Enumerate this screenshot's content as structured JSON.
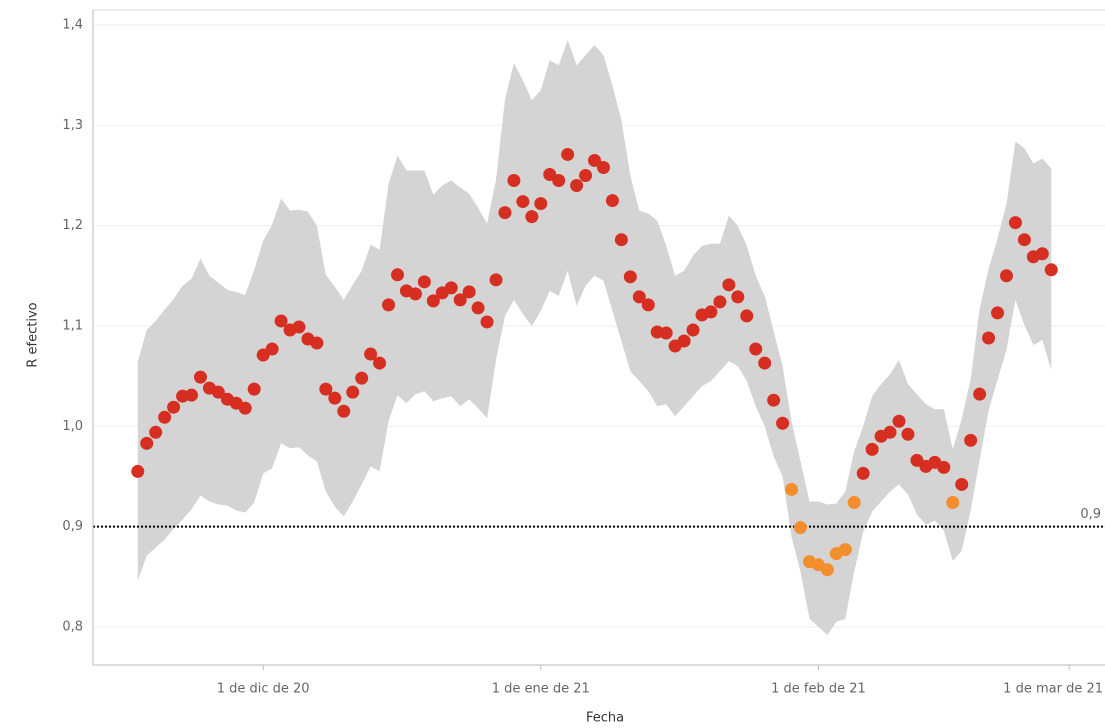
{
  "chart_data": {
    "type": "scatter",
    "y_label": "R efectivo",
    "x_label": "Fecha",
    "x": [
      "2020-11-17",
      "2020-11-18",
      "2020-11-19",
      "2020-11-20",
      "2020-11-21",
      "2020-11-22",
      "2020-11-23",
      "2020-11-24",
      "2020-11-25",
      "2020-11-26",
      "2020-11-27",
      "2020-11-28",
      "2020-11-29",
      "2020-11-30",
      "2020-12-01",
      "2020-12-02",
      "2020-12-03",
      "2020-12-04",
      "2020-12-05",
      "2020-12-06",
      "2020-12-07",
      "2020-12-08",
      "2020-12-09",
      "2020-12-10",
      "2020-12-11",
      "2020-12-12",
      "2020-12-13",
      "2020-12-14",
      "2020-12-15",
      "2020-12-16",
      "2020-12-17",
      "2020-12-18",
      "2020-12-19",
      "2020-12-20",
      "2020-12-21",
      "2020-12-22",
      "2020-12-23",
      "2020-12-24",
      "2020-12-25",
      "2020-12-26",
      "2020-12-27",
      "2020-12-28",
      "2020-12-29",
      "2020-12-30",
      "2020-12-31",
      "2021-01-01",
      "2021-01-02",
      "2021-01-03",
      "2021-01-04",
      "2021-01-05",
      "2021-01-06",
      "2021-01-07",
      "2021-01-08",
      "2021-01-09",
      "2021-01-10",
      "2021-01-11",
      "2021-01-12",
      "2021-01-13",
      "2021-01-14",
      "2021-01-15",
      "2021-01-16",
      "2021-01-17",
      "2021-01-18",
      "2021-01-19",
      "2021-01-20",
      "2021-01-21",
      "2021-01-22",
      "2021-01-23",
      "2021-01-24",
      "2021-01-25",
      "2021-01-26",
      "2021-01-27",
      "2021-01-28",
      "2021-01-29",
      "2021-01-30",
      "2021-01-31",
      "2021-02-01",
      "2021-02-02",
      "2021-02-03",
      "2021-02-04",
      "2021-02-05",
      "2021-02-06",
      "2021-02-07",
      "2021-02-08",
      "2021-02-09",
      "2021-02-10",
      "2021-02-11",
      "2021-02-12",
      "2021-02-13",
      "2021-02-14",
      "2021-02-15",
      "2021-02-16",
      "2021-02-17",
      "2021-02-18",
      "2021-02-19",
      "2021-02-20",
      "2021-02-21",
      "2021-02-22",
      "2021-02-23",
      "2021-02-24",
      "2021-02-25",
      "2021-02-26",
      "2021-02-27"
    ],
    "values": [
      0.955,
      0.983,
      0.994,
      1.009,
      1.019,
      1.03,
      1.031,
      1.049,
      1.038,
      1.034,
      1.027,
      1.023,
      1.018,
      1.037,
      1.071,
      1.077,
      1.105,
      1.096,
      1.099,
      1.087,
      1.083,
      1.037,
      1.028,
      1.015,
      1.034,
      1.048,
      1.072,
      1.063,
      1.121,
      1.151,
      1.135,
      1.132,
      1.144,
      1.125,
      1.133,
      1.138,
      1.126,
      1.134,
      1.118,
      1.104,
      1.146,
      1.213,
      1.245,
      1.224,
      1.209,
      1.222,
      1.251,
      1.245,
      1.271,
      1.24,
      1.25,
      1.265,
      1.258,
      1.225,
      1.186,
      1.149,
      1.129,
      1.121,
      1.094,
      1.093,
      1.08,
      1.085,
      1.096,
      1.111,
      1.114,
      1.124,
      1.141,
      1.129,
      1.11,
      1.077,
      1.063,
      1.026,
      1.003,
      0.937,
      0.899,
      0.865,
      0.862,
      0.857,
      0.873,
      0.877,
      0.924,
      0.953,
      0.977,
      0.99,
      0.994,
      1.005,
      0.992,
      0.966,
      0.96,
      0.964,
      0.959,
      0.924,
      0.942,
      0.986,
      1.032,
      1.088,
      1.113,
      1.15,
      1.203,
      1.186,
      1.169,
      1.172,
      1.156
    ],
    "colors": [
      "#d62f21",
      "#d62f21",
      "#d62f21",
      "#d62f21",
      "#d62f21",
      "#d62f21",
      "#d62f21",
      "#d62f21",
      "#d62f21",
      "#d62f21",
      "#d62f21",
      "#d62f21",
      "#d62f21",
      "#d62f21",
      "#d62f21",
      "#d62f21",
      "#d62f21",
      "#d62f21",
      "#d62f21",
      "#d62f21",
      "#d62f21",
      "#d62f21",
      "#d62f21",
      "#d62f21",
      "#d62f21",
      "#d62f21",
      "#d62f21",
      "#d62f21",
      "#d62f21",
      "#d62f21",
      "#d62f21",
      "#d62f21",
      "#d62f21",
      "#d62f21",
      "#d62f21",
      "#d62f21",
      "#d62f21",
      "#d62f21",
      "#d62f21",
      "#d62f21",
      "#d62f21",
      "#d62f21",
      "#d62f21",
      "#d62f21",
      "#d62f21",
      "#d62f21",
      "#d62f21",
      "#d62f21",
      "#d62f21",
      "#d62f21",
      "#d62f21",
      "#d62f21",
      "#d62f21",
      "#d62f21",
      "#d62f21",
      "#d62f21",
      "#d62f21",
      "#d62f21",
      "#d62f21",
      "#d62f21",
      "#d62f21",
      "#d62f21",
      "#d62f21",
      "#d62f21",
      "#d62f21",
      "#d62f21",
      "#d62f21",
      "#d62f21",
      "#d62f21",
      "#d62f21",
      "#d62f21",
      "#d62f21",
      "#d62f21",
      "#f28e2b",
      "#f28e2b",
      "#f28e2b",
      "#f28e2b",
      "#f28e2b",
      "#f28e2b",
      "#f28e2b",
      "#f28e2b",
      "#d62f21",
      "#d62f21",
      "#d62f21",
      "#d62f21",
      "#d62f21",
      "#d62f21",
      "#d62f21",
      "#d62f21",
      "#d62f21",
      "#d62f21",
      "#f28e2b",
      "#d62f21",
      "#d62f21",
      "#d62f21",
      "#d62f21",
      "#d62f21",
      "#d62f21",
      "#d62f21",
      "#d62f21",
      "#d62f21",
      "#d62f21",
      "#d62f21"
    ],
    "band": {
      "color": "#d4d4d4",
      "upper": [
        1.064,
        1.096,
        1.105,
        1.116,
        1.127,
        1.14,
        1.147,
        1.167,
        1.15,
        1.143,
        1.136,
        1.134,
        1.131,
        1.156,
        1.185,
        1.201,
        1.227,
        1.215,
        1.216,
        1.214,
        1.2,
        1.151,
        1.139,
        1.126,
        1.141,
        1.155,
        1.181,
        1.176,
        1.241,
        1.27,
        1.255,
        1.255,
        1.255,
        1.231,
        1.24,
        1.245,
        1.238,
        1.232,
        1.218,
        1.202,
        1.246,
        1.326,
        1.362,
        1.345,
        1.325,
        1.335,
        1.365,
        1.36,
        1.385,
        1.36,
        1.37,
        1.38,
        1.37,
        1.34,
        1.305,
        1.25,
        1.215,
        1.212,
        1.205,
        1.18,
        1.15,
        1.155,
        1.17,
        1.18,
        1.182,
        1.182,
        1.21,
        1.2,
        1.18,
        1.15,
        1.13,
        1.095,
        1.06,
        1.005,
        0.965,
        0.925,
        0.925,
        0.922,
        0.923,
        0.935,
        0.975,
        1.0,
        1.03,
        1.042,
        1.052,
        1.066,
        1.042,
        1.032,
        1.022,
        1.017,
        1.017,
        0.977,
        1.007,
        1.047,
        1.117,
        1.157,
        1.187,
        1.222,
        1.284,
        1.277,
        1.262,
        1.267,
        1.257
      ],
      "lower": [
        0.846,
        0.871,
        0.879,
        0.887,
        0.898,
        0.907,
        0.917,
        0.931,
        0.925,
        0.922,
        0.921,
        0.916,
        0.914,
        0.924,
        0.953,
        0.958,
        0.983,
        0.978,
        0.979,
        0.971,
        0.965,
        0.935,
        0.92,
        0.91,
        0.925,
        0.942,
        0.96,
        0.955,
        1.005,
        1.031,
        1.023,
        1.032,
        1.035,
        1.025,
        1.028,
        1.03,
        1.02,
        1.027,
        1.018,
        1.008,
        1.066,
        1.11,
        1.126,
        1.112,
        1.1,
        1.115,
        1.135,
        1.13,
        1.155,
        1.12,
        1.14,
        1.15,
        1.145,
        1.115,
        1.085,
        1.055,
        1.045,
        1.035,
        1.02,
        1.022,
        1.01,
        1.02,
        1.03,
        1.04,
        1.045,
        1.055,
        1.065,
        1.06,
        1.045,
        1.02,
        1.0,
        0.97,
        0.95,
        0.89,
        0.855,
        0.808,
        0.8,
        0.792,
        0.805,
        0.808,
        0.855,
        0.895,
        0.915,
        0.925,
        0.935,
        0.942,
        0.932,
        0.912,
        0.902,
        0.906,
        0.896,
        0.866,
        0.876,
        0.916,
        0.966,
        1.016,
        1.046,
        1.076,
        1.126,
        1.101,
        1.081,
        1.086,
        1.056
      ]
    },
    "reference_line": {
      "value": 0.9,
      "label": "0,9",
      "color": "#000000"
    },
    "xlim": [
      "2020-11-12",
      "2021-03-05"
    ],
    "xticks": [
      {
        "value": "2020-12-01",
        "label": "1 de dic de 20"
      },
      {
        "value": "2021-01-01",
        "label": "1 de ene de 21"
      },
      {
        "value": "2021-02-01",
        "label": "1 de feb de 21"
      },
      {
        "value": "2021-03-01",
        "label": "1 de mar de 21"
      }
    ],
    "ylim": [
      0.762,
      1.415
    ],
    "yticks": [
      {
        "value": 0.8,
        "label": "0,8"
      },
      {
        "value": 0.9,
        "label": "0,9"
      },
      {
        "value": 1.0,
        "label": "1,0"
      },
      {
        "value": 1.1,
        "label": "1,1"
      },
      {
        "value": 1.2,
        "label": "1,2"
      },
      {
        "value": 1.3,
        "label": "1,3"
      },
      {
        "value": 1.4,
        "label": "1,4"
      }
    ],
    "grid": true
  }
}
